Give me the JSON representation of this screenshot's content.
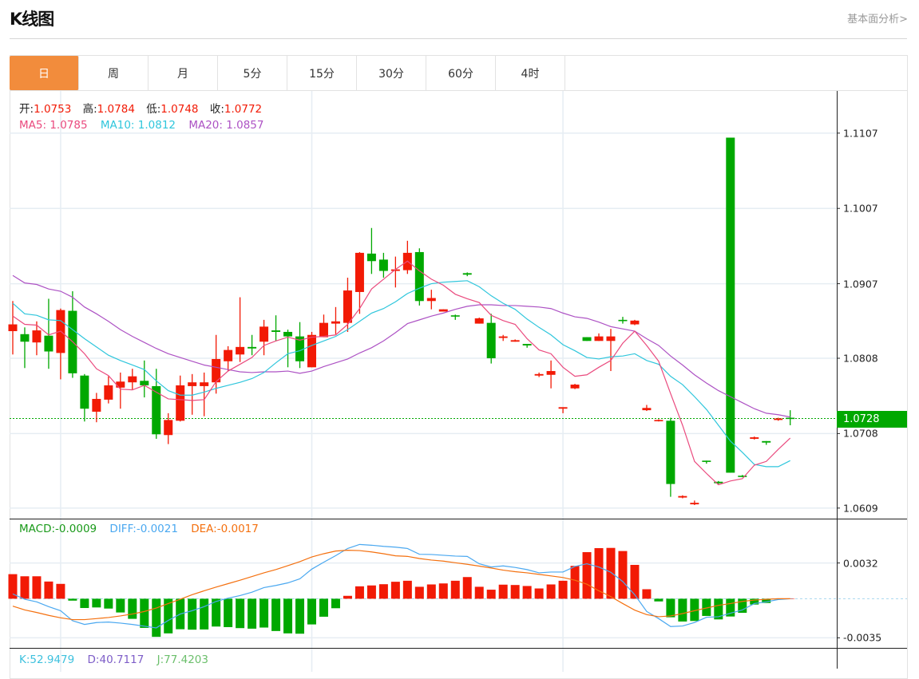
{
  "header": {
    "title": "K线图",
    "link": "基本面分析>"
  },
  "tabs": [
    {
      "label": "日",
      "active": true
    },
    {
      "label": "周",
      "active": false
    },
    {
      "label": "月",
      "active": false
    },
    {
      "label": "5分",
      "active": false
    },
    {
      "label": "15分",
      "active": false
    },
    {
      "label": "30分",
      "active": false
    },
    {
      "label": "60分",
      "active": false
    },
    {
      "label": "4时",
      "active": false
    }
  ],
  "legend": {
    "open_label": "开:",
    "open": "1.0753",
    "high_label": "高:",
    "high": "1.0784",
    "low_label": "低:",
    "low": "1.0748",
    "close_label": "收:",
    "close": "1.0772",
    "ma5_label": "MA5:",
    "ma5": "1.0785",
    "ma10_label": "MA10:",
    "ma10": "1.0812",
    "ma20_label": "MA20:",
    "ma20": "1.0857"
  },
  "current_price": "1.0728",
  "macd_legend": {
    "macd_label": "MACD:",
    "macd": "-0.0009",
    "diff_label": "DIFF:",
    "diff": "-0.0021",
    "dea_label": "DEA:",
    "dea": "-0.0017"
  },
  "kdj_legend": {
    "k_label": "K:",
    "k": "52.9479",
    "d_label": "D:",
    "d": "40.7117",
    "j_label": "J:",
    "j": "77.4203"
  },
  "colors": {
    "up": "#f21a05",
    "down": "#00a800",
    "accent_tab": "#f28c3c",
    "ma5": "#ea4a7e",
    "ma10": "#2fc6dc",
    "ma20": "#ad52c4",
    "diff": "#4aa8f0",
    "dea": "#f4700f",
    "k": "#3ec1de",
    "d": "#7e5ec8",
    "j": "#6cbf6c",
    "legend_value": "#f21a05"
  },
  "chart_data": [
    {
      "type": "candlestick",
      "ylim": [
        1.0595,
        1.1163
      ],
      "yticks": [
        "1.1107",
        "1.1007",
        "1.0907",
        "1.0808",
        "1.0708",
        "1.0609"
      ],
      "current_price": 1.0728,
      "ohlc": [
        [
          1.0844,
          1.0884,
          1.0813,
          1.0853
        ],
        [
          1.084,
          1.0849,
          1.0795,
          1.083
        ],
        [
          1.0829,
          1.0857,
          1.0812,
          1.0845
        ],
        [
          1.0838,
          1.0887,
          1.0794,
          1.0817
        ],
        [
          1.0815,
          1.0874,
          1.078,
          1.0872
        ],
        [
          1.0871,
          1.0897,
          1.0782,
          1.0788
        ],
        [
          1.0785,
          1.0787,
          1.0724,
          1.0741
        ],
        [
          1.0737,
          1.0762,
          1.0723,
          1.0754
        ],
        [
          1.0753,
          1.0784,
          1.0748,
          1.0772
        ],
        [
          1.0769,
          1.0789,
          1.0741,
          1.0777
        ],
        [
          1.0776,
          1.0794,
          1.0766,
          1.0784
        ],
        [
          1.0778,
          1.0805,
          1.0756,
          1.0772
        ],
        [
          1.0771,
          1.0794,
          1.0701,
          1.0707
        ],
        [
          1.0706,
          1.0735,
          1.0694,
          1.0726
        ],
        [
          1.0725,
          1.0785,
          1.0724,
          1.0772
        ],
        [
          1.0771,
          1.0787,
          1.0733,
          1.0776
        ],
        [
          1.0771,
          1.0789,
          1.0731,
          1.0776
        ],
        [
          1.0776,
          1.0839,
          1.0761,
          1.0807
        ],
        [
          1.0804,
          1.0824,
          1.0791,
          1.0819
        ],
        [
          1.0813,
          1.0889,
          1.0803,
          1.0823
        ],
        [
          1.0823,
          1.0839,
          1.0812,
          1.0821
        ],
        [
          1.083,
          1.0859,
          1.0812,
          1.085
        ],
        [
          1.0845,
          1.0865,
          1.0831,
          1.0843
        ],
        [
          1.0843,
          1.0846,
          1.0796,
          1.0837
        ],
        [
          1.0837,
          1.0856,
          1.0795,
          1.0804
        ],
        [
          1.0796,
          1.0843,
          1.0796,
          1.0839
        ],
        [
          1.0836,
          1.0866,
          1.0836,
          1.0855
        ],
        [
          1.0854,
          1.0876,
          1.084,
          1.0857
        ],
        [
          1.0855,
          1.0915,
          1.0843,
          1.0898
        ],
        [
          1.0896,
          1.0949,
          1.0867,
          1.0948
        ],
        [
          1.0947,
          1.0981,
          1.092,
          1.0937
        ],
        [
          1.0939,
          1.0948,
          1.0915,
          1.0924
        ],
        [
          1.0924,
          1.0943,
          1.0902,
          1.0926
        ],
        [
          1.0925,
          1.0964,
          1.092,
          1.0948
        ],
        [
          1.0949,
          1.0954,
          1.0878,
          1.0884
        ],
        [
          1.0884,
          1.0899,
          1.0873,
          1.0888
        ],
        [
          1.087,
          1.0873,
          1.087,
          1.0873
        ],
        [
          1.0865,
          1.0866,
          1.0859,
          1.0864
        ],
        [
          1.0921,
          1.0922,
          1.0917,
          1.0919
        ],
        [
          1.0854,
          1.0862,
          1.0854,
          1.0861
        ],
        [
          1.0855,
          1.0867,
          1.0801,
          1.0808
        ],
        [
          1.0835,
          1.0839,
          1.0831,
          1.0837
        ],
        [
          1.083,
          1.0833,
          1.083,
          1.0832
        ],
        [
          1.0827,
          1.0827,
          1.0822,
          1.0825
        ],
        [
          1.0785,
          1.0789,
          1.0783,
          1.0787
        ],
        [
          1.0786,
          1.0805,
          1.0768,
          1.0791
        ],
        [
          1.0741,
          1.0743,
          1.0735,
          1.0743
        ],
        [
          1.0768,
          1.0774,
          1.0767,
          1.0773
        ],
        [
          1.0836,
          1.0836,
          1.0831,
          1.0831
        ],
        [
          1.0831,
          1.0841,
          1.0831,
          1.0837
        ],
        [
          1.0831,
          1.0847,
          1.0791,
          1.0837
        ],
        [
          1.0859,
          1.0863,
          1.0854,
          1.0858
        ],
        [
          1.0853,
          1.0859,
          1.0852,
          1.0858
        ],
        [
          1.0739,
          1.0746,
          1.0738,
          1.0742
        ],
        [
          1.0725,
          1.0727,
          1.0724,
          1.0726
        ],
        [
          1.0725,
          1.0729,
          1.0624,
          1.0641
        ],
        [
          1.0623,
          1.0626,
          1.0622,
          1.0625
        ],
        [
          1.0614,
          1.0619,
          1.0613,
          1.0616
        ],
        [
          1.0672,
          1.0672,
          1.0668,
          1.0671
        ],
        [
          1.0644,
          1.0645,
          1.0641,
          1.0642
        ],
        [
          1.1101,
          1.1101,
          1.0656,
          1.0656
        ],
        [
          1.0652,
          1.0653,
          1.065,
          1.0651
        ],
        [
          1.0701,
          1.0704,
          1.07,
          1.0703
        ],
        [
          1.0698,
          1.0698,
          1.0693,
          1.0696
        ],
        [
          1.0726,
          1.0729,
          1.0725,
          1.0728
        ],
        [
          1.0729,
          1.0739,
          1.0719,
          1.0728
        ]
      ],
      "ma5": [
        1.0864,
        1.0853,
        1.0852,
        1.0839,
        1.0844,
        1.083,
        1.0814,
        1.0794,
        1.0785,
        1.0767,
        1.0766,
        1.0772,
        1.0763,
        1.0754,
        1.0753,
        1.0752,
        1.0753,
        1.0777,
        1.0791,
        1.08,
        1.0809,
        1.0825,
        1.0831,
        1.0836,
        1.0832,
        1.0836,
        1.0837,
        1.0839,
        1.0853,
        1.0874,
        1.09,
        1.0913,
        1.0926,
        1.0937,
        1.0924,
        1.0913,
        1.0905,
        1.0893,
        1.0887,
        1.0882,
        1.0865,
        1.0858,
        1.0853,
        1.0834,
        1.0819,
        1.0814,
        1.0796,
        1.0784,
        1.0786,
        1.0796,
        1.0805,
        1.0828,
        1.0844,
        1.0825,
        1.0804,
        1.0761,
        1.0719,
        1.0671,
        1.0655,
        1.064,
        1.0645,
        1.0648,
        1.0666,
        1.0671,
        1.0687,
        1.0702
      ],
      "ma10": [
        1.0881,
        1.0867,
        1.0865,
        1.0859,
        1.0858,
        1.0846,
        1.0834,
        1.0823,
        1.0812,
        1.0805,
        1.0799,
        1.0793,
        1.0778,
        1.0765,
        1.0759,
        1.0759,
        1.0763,
        1.0768,
        1.0772,
        1.0776,
        1.0781,
        1.0789,
        1.0802,
        1.0814,
        1.0818,
        1.0825,
        1.0831,
        1.0837,
        1.0846,
        1.0857,
        1.0868,
        1.0874,
        1.0883,
        1.0894,
        1.0901,
        1.0907,
        1.0909,
        1.091,
        1.0911,
        1.0903,
        1.0891,
        1.0881,
        1.0873,
        1.086,
        1.0849,
        1.0839,
        1.0826,
        1.0818,
        1.0809,
        1.0807,
        1.081,
        1.0811,
        1.0814,
        1.0805,
        1.08,
        1.0784,
        1.0773,
        1.0757,
        1.074,
        1.0719,
        1.0698,
        1.0683,
        1.0667,
        1.0664,
        1.0664,
        1.0672
      ],
      "ma20": [
        1.0918,
        1.0908,
        1.0906,
        1.09,
        1.0897,
        1.0889,
        1.0876,
        1.0867,
        1.0857,
        1.0846,
        1.0837,
        1.0829,
        1.0821,
        1.0814,
        1.0809,
        1.0804,
        1.0799,
        1.0796,
        1.0793,
        1.079,
        1.0789,
        1.079,
        1.079,
        1.0791,
        1.0788,
        1.0791,
        1.0797,
        1.0802,
        1.0807,
        1.0815,
        1.0822,
        1.0831,
        1.0842,
        1.0854,
        1.0859,
        1.0864,
        1.0868,
        1.0873,
        1.0877,
        1.0879,
        1.0879,
        1.0878,
        1.0878,
        1.0877,
        1.0876,
        1.0874,
        1.0868,
        1.0863,
        1.0861,
        1.0856,
        1.085,
        1.0847,
        1.0844,
        1.0834,
        1.0825,
        1.0811,
        1.0799,
        1.0786,
        1.0775,
        1.0765,
        1.0757,
        1.0749,
        1.0741,
        1.0735,
        1.0733,
        1.073
      ]
    },
    {
      "type": "bar",
      "ylim": [
        -0.0044,
        0.0071
      ],
      "yticks": [
        "0.0032",
        "-0.0035"
      ],
      "macd": [
        0.0022,
        0.00201,
        0.00201,
        0.00154,
        0.00133,
        -0.00017,
        -0.00083,
        -0.00078,
        -0.00088,
        -0.00123,
        -0.0018,
        -0.00261,
        -0.00341,
        -0.0031,
        -0.00273,
        -0.00277,
        -0.00275,
        -0.00249,
        -0.00254,
        -0.00263,
        -0.00268,
        -0.00258,
        -0.00289,
        -0.0031,
        -0.00313,
        -0.0023,
        -0.00161,
        -0.00085,
        0.00026,
        0.00111,
        0.00119,
        0.0013,
        0.00152,
        0.00161,
        0.00107,
        0.00128,
        0.00137,
        0.00161,
        0.00194,
        0.00107,
        0.00081,
        0.00126,
        0.00123,
        0.00114,
        0.00092,
        0.00128,
        0.00161,
        0.00294,
        0.00417,
        0.00453,
        0.00455,
        0.00427,
        0.00303,
        0.00085,
        -0.00024,
        -0.00166,
        -0.00204,
        -0.00199,
        -0.00154,
        -0.00185,
        -0.00159,
        -0.00126,
        -0.00052,
        -0.00038,
        -5e-05,
        0.0
      ],
      "diff": [
        0.00043,
        -5e-05,
        -0.00028,
        -0.00071,
        -0.00107,
        -0.00197,
        -0.0023,
        -0.00213,
        -0.00209,
        -0.00218,
        -0.0023,
        -0.00246,
        -0.00261,
        -0.00194,
        -0.00137,
        -0.00107,
        -0.00071,
        -0.00024,
        5e-05,
        0.00028,
        0.00059,
        0.001,
        0.00119,
        0.00142,
        0.00178,
        0.00265,
        0.00327,
        0.00386,
        0.0045,
        0.00486,
        0.00479,
        0.00469,
        0.00462,
        0.0045,
        0.00398,
        0.00396,
        0.00389,
        0.00382,
        0.00379,
        0.00313,
        0.00284,
        0.00294,
        0.0028,
        0.00261,
        0.00232,
        0.00239,
        0.00239,
        0.00289,
        0.00313,
        0.00284,
        0.00237,
        0.00154,
        0.00036,
        -0.00114,
        -0.00178,
        -0.00249,
        -0.00244,
        -0.00213,
        -0.00166,
        -0.00161,
        -0.0013,
        -0.001,
        -0.00043,
        -0.00028,
        -7e-05,
        0.0
      ],
      "dea": [
        -0.00066,
        -0.001,
        -0.00123,
        -0.00149,
        -0.00171,
        -0.00187,
        -0.00187,
        -0.00178,
        -0.00168,
        -0.00154,
        -0.00137,
        -0.00114,
        -0.00083,
        -0.00043,
        -5e-05,
        0.00036,
        0.00071,
        0.00104,
        0.00135,
        0.00166,
        0.00199,
        0.00232,
        0.00261,
        0.00296,
        0.00332,
        0.00374,
        0.00403,
        0.00427,
        0.00434,
        0.00431,
        0.00419,
        0.00403,
        0.00384,
        0.00379,
        0.0036,
        0.00346,
        0.00337,
        0.00322,
        0.00308,
        0.00292,
        0.00275,
        0.00256,
        0.00242,
        0.00232,
        0.00218,
        0.00204,
        0.0019,
        0.00166,
        0.0013,
        0.00071,
        0.00019,
        -0.00043,
        -0.00102,
        -0.00142,
        -0.00161,
        -0.00154,
        -0.00133,
        -0.00107,
        -0.00083,
        -0.00059,
        -0.00043,
        -0.00024,
        -0.00012,
        -5e-05,
        0.0,
        0.0
      ]
    }
  ]
}
